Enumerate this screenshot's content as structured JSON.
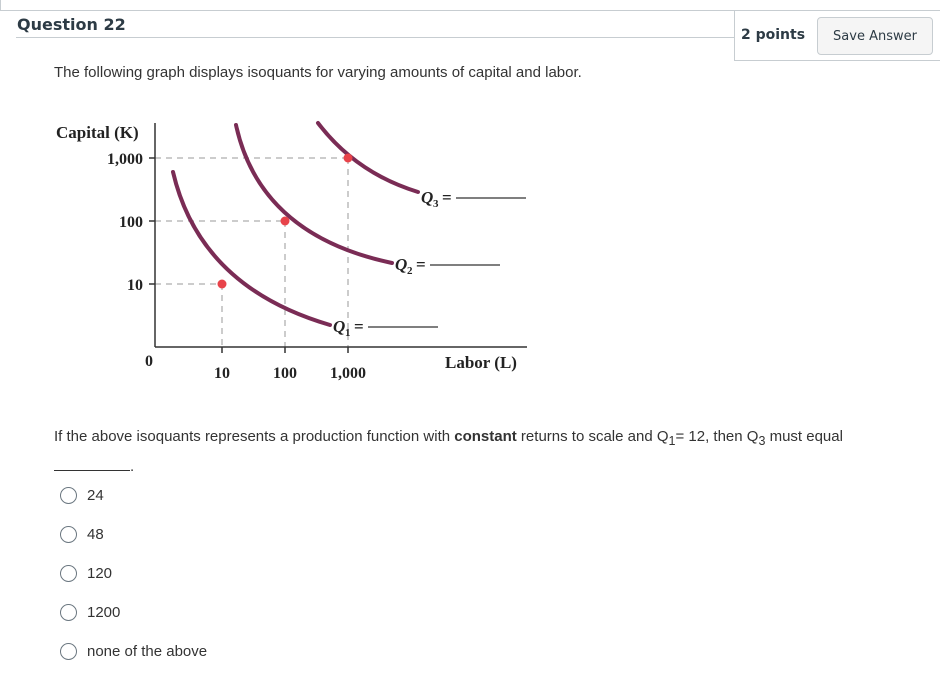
{
  "question": {
    "title": "Question 22",
    "points": "2 points",
    "save_label": "Save Answer",
    "intro": "The following graph displays isoquants for varying amounts of capital and labor.",
    "prompt_part1": "If the above isoquants represents a production function with ",
    "prompt_bold": "constant",
    "prompt_part2": " returns to scale and Q",
    "q1_sub": "1",
    "prompt_part3": "= 12, then Q",
    "q3_sub": "3",
    "prompt_part4": " must equal",
    "prompt_end": "."
  },
  "graph": {
    "ylabel": "Capital (K)",
    "xlabel": "Labor (L)",
    "y_ticks": [
      "1,000",
      "100",
      "10"
    ],
    "x_ticks": [
      "10",
      "100",
      "1,000"
    ],
    "origin": "0",
    "curves": [
      {
        "label": "Q",
        "sub": "1",
        "eq": "="
      },
      {
        "label": "Q",
        "sub": "2",
        "eq": "="
      },
      {
        "label": "Q",
        "sub": "3",
        "eq": "="
      }
    ],
    "curve_color": "#7a2c55",
    "point_color": "#e8434a"
  },
  "options": [
    {
      "label": "24"
    },
    {
      "label": "48"
    },
    {
      "label": "120"
    },
    {
      "label": "1200"
    },
    {
      "label": "none of the above"
    }
  ]
}
